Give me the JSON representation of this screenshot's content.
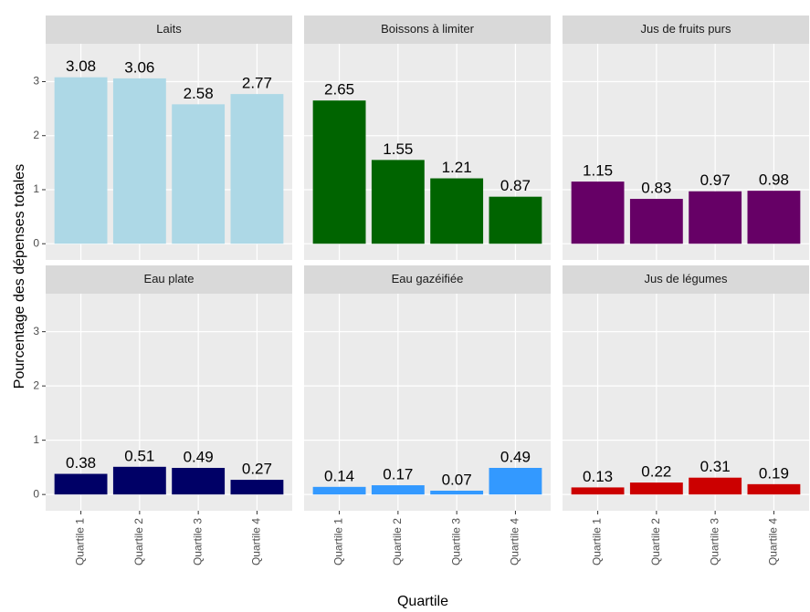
{
  "chart_data": {
    "type": "bar",
    "x_label": "Quartile",
    "y_label": "Pourcentage des dépenses totales",
    "categories": [
      "Quartile 1",
      "Quartile 2",
      "Quartile 3",
      "Quartile 4"
    ],
    "ylim": [
      -0.3,
      3.7
    ],
    "yticks": [
      0,
      1,
      2,
      3
    ],
    "grid": true,
    "panels": [
      {
        "title": "Laits",
        "color": "#add8e6",
        "values": [
          3.08,
          3.06,
          2.58,
          2.77
        ]
      },
      {
        "title": "Boissons à limiter",
        "color": "#006400",
        "values": [
          2.65,
          1.55,
          1.21,
          0.87
        ]
      },
      {
        "title": "Jus de fruits purs",
        "color": "#660066",
        "values": [
          1.15,
          0.83,
          0.97,
          0.98
        ]
      },
      {
        "title": "Eau plate",
        "color": "#000066",
        "values": [
          0.38,
          0.51,
          0.49,
          0.27
        ]
      },
      {
        "title": "Eau gazéifiée",
        "color": "#3399ff",
        "values": [
          0.14,
          0.17,
          0.07,
          0.49
        ]
      },
      {
        "title": "Jus de légumes",
        "color": "#cc0000",
        "values": [
          0.13,
          0.22,
          0.31,
          0.19
        ]
      }
    ]
  }
}
